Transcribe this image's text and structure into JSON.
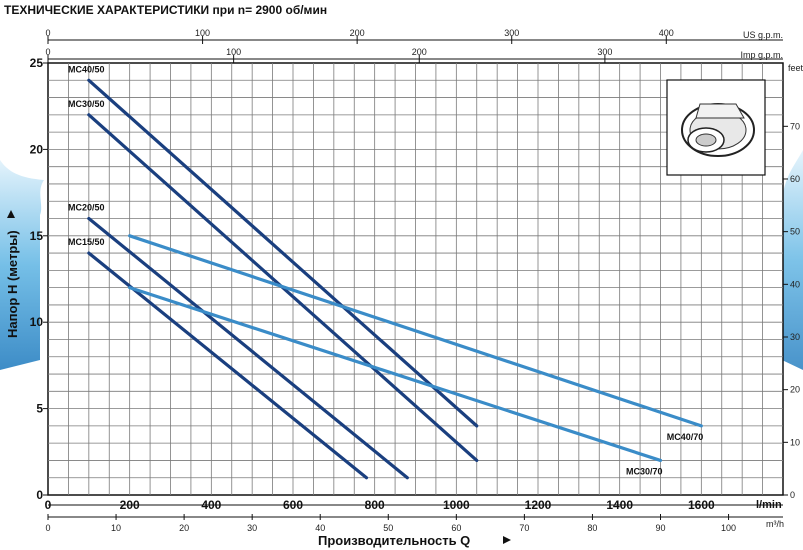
{
  "chart_data": {
    "type": "line",
    "title": "ТЕХНИЧЕСКИЕ ХАРАКТЕРИСТИКИ при n= 2900 об/мин",
    "xlabel": "Производительность Q",
    "ylabel": "Напор H (метры)",
    "x_unit": "l/min",
    "xlim": [
      0,
      1800
    ],
    "ylim": [
      0,
      25
    ],
    "grid": true,
    "x_ticks": [
      0,
      200,
      400,
      600,
      800,
      1000,
      1200,
      1400,
      1600
    ],
    "y_ticks": [
      0,
      5,
      10,
      15,
      20,
      25
    ],
    "secondary_axes": {
      "m3h": {
        "unit": "m³/h",
        "ticks": [
          0,
          10,
          20,
          30,
          40,
          50,
          60,
          70,
          80,
          90,
          100
        ]
      },
      "us_gpm": {
        "unit": "US g.p.m.",
        "ticks": [
          0,
          100,
          200,
          300,
          400
        ]
      },
      "imp_gpm": {
        "unit": "Imp g.p.m.",
        "ticks": [
          0,
          100,
          200,
          300
        ]
      },
      "feet": {
        "unit": "feet",
        "ticks": [
          0,
          10,
          20,
          30,
          40,
          50,
          60,
          70
        ]
      }
    },
    "series": [
      {
        "name": "MC40/50",
        "color": "#1a3f7f",
        "label_side": "start",
        "x": [
          100,
          1050
        ],
        "y": [
          24,
          4
        ]
      },
      {
        "name": "MC30/50",
        "color": "#1a3f7f",
        "label_side": "start",
        "x": [
          100,
          1050
        ],
        "y": [
          22,
          2
        ]
      },
      {
        "name": "MC20/50",
        "color": "#1a3f7f",
        "label_side": "start",
        "x": [
          100,
          880
        ],
        "y": [
          16,
          1
        ]
      },
      {
        "name": "MC15/50",
        "color": "#1a3f7f",
        "label_side": "start",
        "x": [
          100,
          780
        ],
        "y": [
          14,
          1
        ]
      },
      {
        "name": "MC40/70",
        "color": "#3a8cc8",
        "label_side": "end",
        "x": [
          200,
          1600
        ],
        "y": [
          15,
          4
        ]
      },
      {
        "name": "MC30/70",
        "color": "#3a8cc8",
        "label_side": "end",
        "x": [
          200,
          1500
        ],
        "y": [
          12,
          2
        ]
      }
    ]
  }
}
